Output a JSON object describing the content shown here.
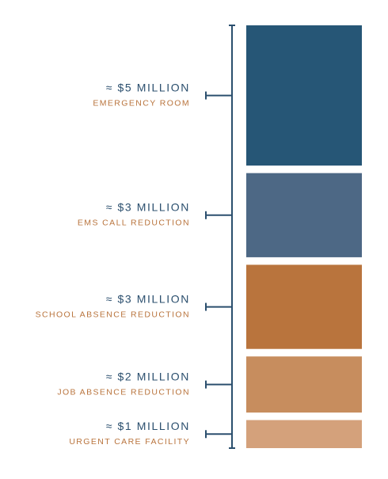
{
  "chart_data": {
    "type": "bar",
    "categories": [
      "EMERGENCY ROOM",
      "EMS CALL REDUCTION",
      "SCHOOL ABSENCE REDUCTION",
      "JOB ABSENCE REDUCTION",
      "URGENT CARE FACILITY"
    ],
    "values": [
      5,
      3,
      3,
      2,
      1
    ],
    "value_labels": [
      "≈ $5 MILLION",
      "≈ $3 MILLION",
      "≈ $3 MILLION",
      "≈ $2 MILLION",
      "≈ $1 MILLION"
    ],
    "colors": [
      "#265676",
      "#4d6885",
      "#b9743d",
      "#c78d5e",
      "#d4a17b"
    ]
  }
}
